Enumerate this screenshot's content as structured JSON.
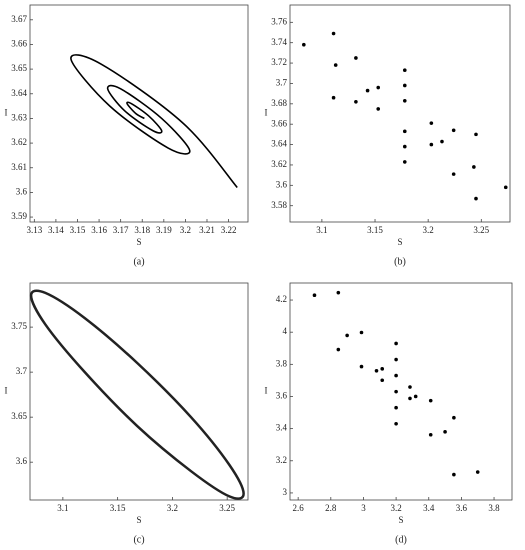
{
  "chart_data": [
    {
      "type": "line",
      "caption": "(a)",
      "x_label": "S",
      "y_label": "I",
      "xlim": [
        3.128,
        3.229
      ],
      "ylim": [
        3.588,
        3.676
      ],
      "xticks": [
        3.13,
        3.14,
        3.15,
        3.16,
        3.17,
        3.18,
        3.19,
        3.2,
        3.21,
        3.22
      ],
      "yticks": [
        3.59,
        3.6,
        3.61,
        3.62,
        3.63,
        3.64,
        3.65,
        3.66,
        3.67
      ],
      "series": [
        {
          "color": "#000000",
          "x": [
            3.224,
            3.199,
            3.161,
            3.147,
            3.165,
            3.192,
            3.202,
            3.189,
            3.17,
            3.164,
            3.172,
            3.185,
            3.189,
            3.183,
            3.175,
            3.173,
            3.177,
            3.181
          ],
          "values": [
            3.602,
            3.628,
            3.652,
            3.654,
            3.635,
            3.618,
            3.617,
            3.63,
            3.642,
            3.642,
            3.633,
            3.625,
            3.625,
            3.631,
            3.636,
            3.636,
            3.632,
            3.63
          ]
        }
      ]
    },
    {
      "type": "scatter",
      "caption": "(b)",
      "x_label": "S",
      "y_label": "I",
      "xlim": [
        3.07,
        3.277
      ],
      "ylim": [
        3.564,
        3.777
      ],
      "xticks": [
        3.1,
        3.15,
        3.2,
        3.25
      ],
      "yticks": [
        3.58,
        3.6,
        3.62,
        3.64,
        3.66,
        3.68,
        3.7,
        3.72,
        3.74,
        3.76
      ],
      "series": [
        {
          "color": "#000000",
          "x": [
            3.213,
            3.203,
            3.178,
            3.153,
            3.143,
            3.153,
            3.178,
            3.203
          ],
          "values": [
            3.643,
            3.661,
            3.683,
            3.696,
            3.693,
            3.675,
            3.653,
            3.64
          ]
        },
        {
          "color": "#000000",
          "x": [
            3.243,
            3.224,
            3.178,
            3.132,
            3.113,
            3.132,
            3.178,
            3.224
          ],
          "values": [
            3.618,
            3.654,
            3.698,
            3.725,
            3.718,
            3.682,
            3.638,
            3.611
          ]
        },
        {
          "color": "#000000",
          "x": [
            3.273,
            3.245,
            3.178,
            3.111,
            3.083,
            3.111,
            3.178,
            3.245
          ],
          "values": [
            3.598,
            3.65,
            3.713,
            3.749,
            3.738,
            3.686,
            3.623,
            3.587
          ]
        }
      ]
    },
    {
      "type": "line",
      "caption": "(c)",
      "x_label": "S",
      "y_label": "I",
      "closed": true,
      "xlim": [
        3.07,
        3.269
      ],
      "ylim": [
        3.558,
        3.799
      ],
      "xticks": [
        3.1,
        3.15,
        3.2,
        3.25
      ],
      "yticks": [
        3.6,
        3.65,
        3.7,
        3.75
      ],
      "series": [
        {
          "color": "#222222",
          "x": [
            3.265,
            3.252,
            3.217,
            3.168,
            3.12,
            3.084,
            3.071,
            3.084,
            3.12,
            3.168,
            3.217,
            3.252
          ],
          "values": [
            3.565,
            3.597,
            3.65,
            3.71,
            3.76,
            3.788,
            3.785,
            3.753,
            3.7,
            3.64,
            3.59,
            3.562
          ]
        }
      ]
    },
    {
      "type": "scatter",
      "caption": "(d)",
      "x_label": "S",
      "y_label": "I",
      "xlim": [
        2.55,
        3.91
      ],
      "ylim": [
        2.956,
        4.306
      ],
      "xticks": [
        2.6,
        2.8,
        3,
        3.2,
        3.4,
        3.6,
        3.8
      ],
      "yticks": [
        3,
        3.2,
        3.4,
        3.6,
        3.8,
        4,
        4.2
      ],
      "series": [
        {
          "color": "#000000",
          "x": [
            3.32,
            3.285,
            3.2,
            3.115,
            3.08,
            3.115,
            3.2,
            3.285
          ],
          "values": [
            3.6,
            3.659,
            3.73,
            3.772,
            3.76,
            3.701,
            3.63,
            3.588
          ]
        },
        {
          "color": "#000000",
          "x": [
            3.5,
            3.412,
            3.2,
            2.988,
            2.9,
            2.988,
            3.2,
            3.412
          ],
          "values": [
            3.38,
            3.574,
            3.83,
            3.998,
            3.98,
            3.786,
            3.53,
            3.362
          ]
        },
        {
          "color": "#000000",
          "x": [
            3.7,
            3.554,
            3.2,
            2.846,
            2.7,
            2.846,
            3.2,
            3.554
          ],
          "values": [
            3.13,
            3.468,
            3.93,
            4.246,
            4.23,
            3.892,
            3.43,
            3.114
          ]
        }
      ]
    }
  ]
}
